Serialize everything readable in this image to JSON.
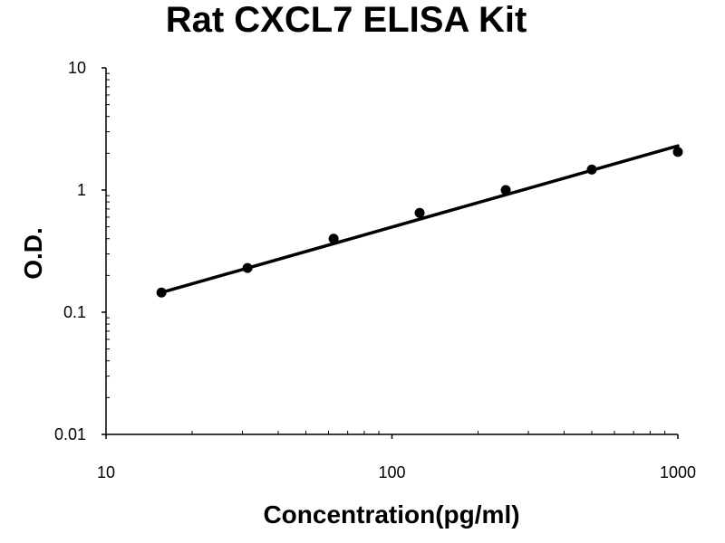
{
  "chart_data": {
    "type": "scatter",
    "title": "Rat CXCL7 ELISA Kit",
    "xlabel": "Concentration(pg/ml)",
    "ylabel": "O.D.",
    "xscale": "log",
    "yscale": "log",
    "xlim": [
      10,
      1000
    ],
    "ylim": [
      0.01,
      10
    ],
    "x_ticks": [
      10,
      100,
      1000
    ],
    "x_tick_labels": [
      "10",
      "100",
      "1000"
    ],
    "y_ticks": [
      0.01,
      0.1,
      1,
      10
    ],
    "y_tick_labels": [
      "0.01",
      "0.1",
      "1",
      "10"
    ],
    "grid": false,
    "series": [
      {
        "x": [
          15.625,
          31.25,
          62.5,
          125,
          250,
          500,
          1000
        ],
        "y": [
          0.145,
          0.23,
          0.4,
          0.65,
          1.0,
          1.47,
          2.05
        ],
        "color": "#000000"
      }
    ],
    "trendline": {
      "type": "power",
      "x": [
        15.625,
        1000
      ],
      "y": [
        0.145,
        2.3
      ],
      "color": "#000000"
    }
  }
}
